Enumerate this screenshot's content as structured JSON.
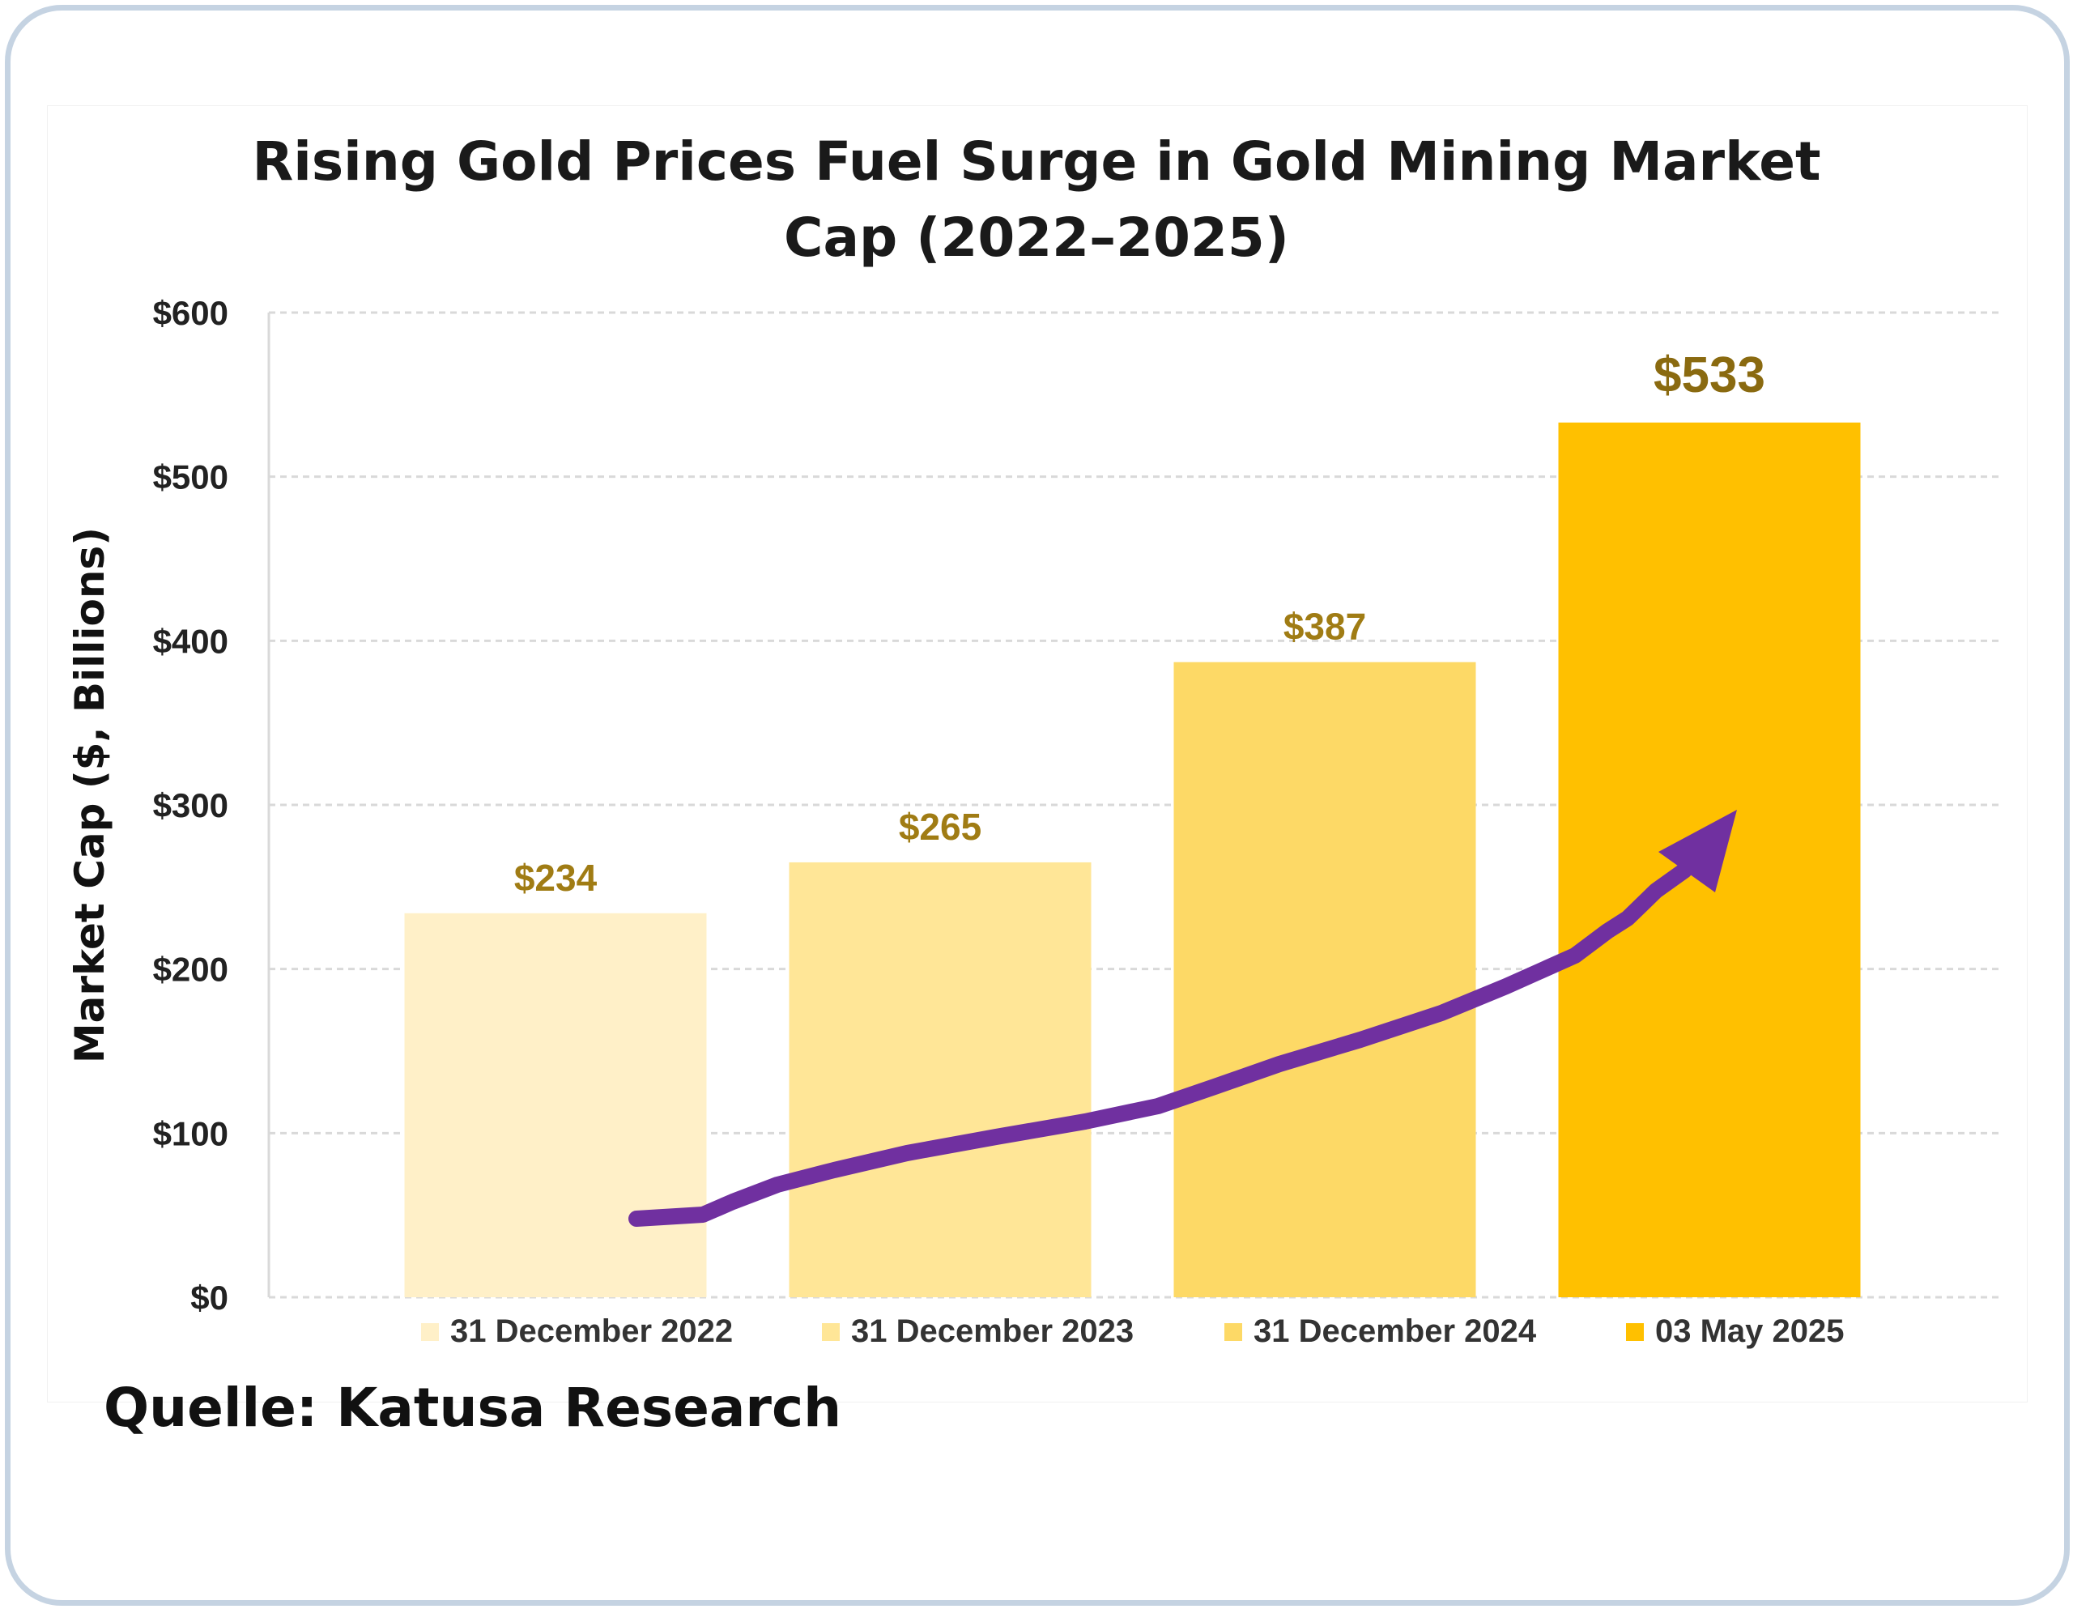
{
  "chart_data": {
    "type": "bar",
    "title_line1": "Rising Gold Prices Fuel Surge in Gold Mining Market",
    "title_line2": "Cap (2022–2025)",
    "xlabel": "",
    "ylabel": "Market Cap ($, Billions)",
    "ylim": [
      0,
      600
    ],
    "yticks": [
      0,
      100,
      200,
      300,
      400,
      500,
      600
    ],
    "ytick_labels": [
      "$0",
      "$100",
      "$200",
      "$300",
      "$400",
      "$500",
      "$600"
    ],
    "grid": true,
    "legend_position": "bottom",
    "categories": [
      "31 December 2022",
      "31 December 2023",
      "31 December 2024",
      "03 May 2025"
    ],
    "values": [
      234,
      265,
      387,
      533
    ],
    "data_labels": [
      "$234",
      "$265",
      "$387",
      "$533"
    ],
    "colors": [
      "#fff0c8",
      "#ffe697",
      "#fdd966",
      "#ffc000"
    ],
    "label_color": "#a07c14",
    "arrow_color": "#7030a0",
    "arrow_direction": "rising"
  },
  "source": "Quelle: Katusa Research"
}
